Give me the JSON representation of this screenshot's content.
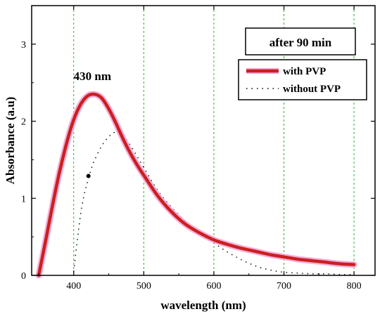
{
  "chart_data": {
    "type": "line",
    "title": "",
    "xlabel": "wavelength (nm)",
    "ylabel": "Absorbance (a.u)",
    "xlim": [
      340,
      830
    ],
    "ylim": [
      0,
      3.5
    ],
    "x_ticks": [
      400,
      500,
      600,
      700,
      800
    ],
    "y_ticks": [
      0,
      1,
      2,
      3
    ],
    "x_tick_labels": [
      "400",
      "500",
      "600",
      "700",
      "800"
    ],
    "y_tick_labels": [
      "0",
      "1",
      "2",
      "3"
    ],
    "grid": "vertical-dashed",
    "legend_position": "top-right",
    "annotation_box": "after 90 min",
    "peak_label": {
      "text": "430 nm",
      "x": 430,
      "y": 2.35
    },
    "marker_point": {
      "x": 421,
      "y": 1.29
    },
    "colors": {
      "with_pvp": "#cc1f1f",
      "with_pvp_glow": "#f2a6d6",
      "without_pvp": "#000000",
      "grid": "#22bb22"
    },
    "series": [
      {
        "name": "with PVP",
        "style": "solid",
        "x": [
          350,
          360,
          370,
          380,
          390,
          400,
          410,
          420,
          430,
          440,
          450,
          460,
          470,
          480,
          490,
          500,
          520,
          540,
          560,
          580,
          600,
          620,
          640,
          660,
          680,
          700,
          720,
          740,
          760,
          780,
          800
        ],
        "y": [
          0.0,
          0.45,
          0.92,
          1.35,
          1.72,
          2.02,
          2.22,
          2.33,
          2.35,
          2.3,
          2.16,
          1.98,
          1.78,
          1.6,
          1.44,
          1.3,
          1.03,
          0.82,
          0.66,
          0.55,
          0.46,
          0.4,
          0.35,
          0.31,
          0.27,
          0.24,
          0.21,
          0.19,
          0.17,
          0.15,
          0.14
        ]
      },
      {
        "name": "without PVP",
        "style": "dashed",
        "x": [
          400,
          405,
          410,
          415,
          420,
          425,
          430,
          440,
          450,
          460,
          470,
          480,
          490,
          500,
          520,
          540,
          560,
          580,
          600,
          620,
          640,
          660,
          680,
          700,
          720,
          740,
          760,
          780,
          800
        ],
        "y": [
          0.05,
          0.45,
          0.8,
          1.05,
          1.22,
          1.38,
          1.5,
          1.68,
          1.8,
          1.86,
          1.82,
          1.7,
          1.55,
          1.4,
          1.1,
          0.88,
          0.7,
          0.55,
          0.42,
          0.3,
          0.2,
          0.12,
          0.07,
          0.04,
          0.03,
          0.02,
          0.02,
          0.01,
          0.01
        ]
      }
    ]
  }
}
